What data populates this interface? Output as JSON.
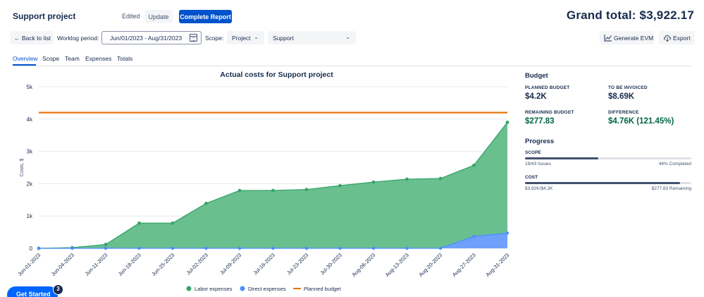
{
  "header": {
    "title": "Support project",
    "edited": "Edited",
    "update": "Update",
    "complete_report": "Complete Report",
    "grand_total": "Grand total: $3,922.17"
  },
  "filters": {
    "back": "Back to list",
    "worklog_label": "Worklog period:",
    "date_range": "Jun/01/2023 - Aug/31/2023",
    "scope_label": "Scope:",
    "scope_value": "Project",
    "project_value": "Support",
    "generate_evm": "Generate EVM",
    "export": "Export"
  },
  "tabs": [
    "Overview",
    "Scope",
    "Team",
    "Expenses",
    "Totals"
  ],
  "chart_data": {
    "type": "area",
    "title": "Actual costs for Support project",
    "ylabel": "Costs, $",
    "xlabel": "",
    "ylim": [
      0,
      5000
    ],
    "yticks": [
      0,
      1000,
      2000,
      3000,
      4000,
      5000
    ],
    "ytick_labels": [
      "0",
      "1k",
      "2k",
      "3k",
      "4k",
      "5k"
    ],
    "categories": [
      "Jun-01-2023",
      "Jun-04-2023",
      "Jun-11-2023",
      "Jun-18-2023",
      "Jun-25-2023",
      "Jul-02-2023",
      "Jul-09-2023",
      "Jul-16-2023",
      "Jul-23-2023",
      "Jul-30-2023",
      "Aug-06-2023",
      "Aug-13-2023",
      "Aug-20-2023",
      "Aug-27-2023",
      "Aug-31-2023"
    ],
    "series": [
      {
        "name": "Labor expenses",
        "color": "#36a46a",
        "values": [
          0,
          20,
          120,
          780,
          780,
          1390,
          1790,
          1790,
          1820,
          1940,
          2050,
          2140,
          2160,
          2570,
          3900
        ]
      },
      {
        "name": "Direct expenses",
        "color": "#4c8dff",
        "values": [
          0,
          0,
          0,
          0,
          0,
          0,
          0,
          0,
          0,
          0,
          0,
          0,
          0,
          370,
          470
        ]
      },
      {
        "name": "Planned budget",
        "color": "#e8730e",
        "values": [
          4200,
          4200,
          4200,
          4200,
          4200,
          4200,
          4200,
          4200,
          4200,
          4200,
          4200,
          4200,
          4200,
          4200,
          4200
        ]
      }
    ],
    "legend_position": "bottom",
    "grid": true
  },
  "budget": {
    "heading": "Budget",
    "planned_label": "PLANNED BUDGET",
    "planned_value": "$4.2K",
    "invoiced_label": "TO BE INVOICED",
    "invoiced_value": "$8.69K",
    "remaining_label": "REMAINING BUDGET",
    "remaining_value": "$277.83",
    "difference_label": "DIFFERENCE",
    "difference_value": "$4.76K (121.45%)",
    "value_color": "#006644"
  },
  "progress": {
    "heading": "Progress",
    "scope_label": "SCOPE",
    "scope_fraction": 0.44,
    "scope_issues": "19/43 Issues",
    "scope_completed": "44% Completed",
    "cost_label": "COST",
    "cost_fraction": 0.934,
    "cost_value": "$3.92K/$4.2K",
    "cost_remaining": "$277.83 Remaining"
  },
  "onboarding": {
    "label": "Get Started",
    "count": "3"
  }
}
